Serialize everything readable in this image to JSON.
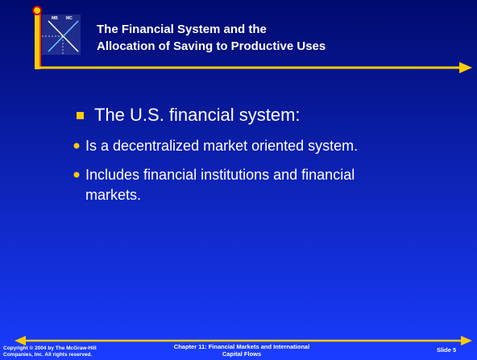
{
  "logo": {
    "labels": [
      "MB",
      "MC"
    ]
  },
  "header": {
    "title_lines": [
      "The Financial System and the",
      "Allocation of Saving to Productive Uses"
    ]
  },
  "body": {
    "bullet": "The U.S. financial system:",
    "sub_bullets": [
      [
        "Is a decentralized market oriented system."
      ],
      [
        "Includes financial institutions and financial",
        "markets."
      ]
    ]
  },
  "footer": {
    "copyright_lines": [
      "Copyright © 2004 by The McGraw-Hill",
      "Companies, Inc.  All rights reserved."
    ],
    "chapter_lines": [
      "Chapter 11: Financial Markets and International",
      "Capital Flows"
    ],
    "slide": "Slide 5"
  }
}
